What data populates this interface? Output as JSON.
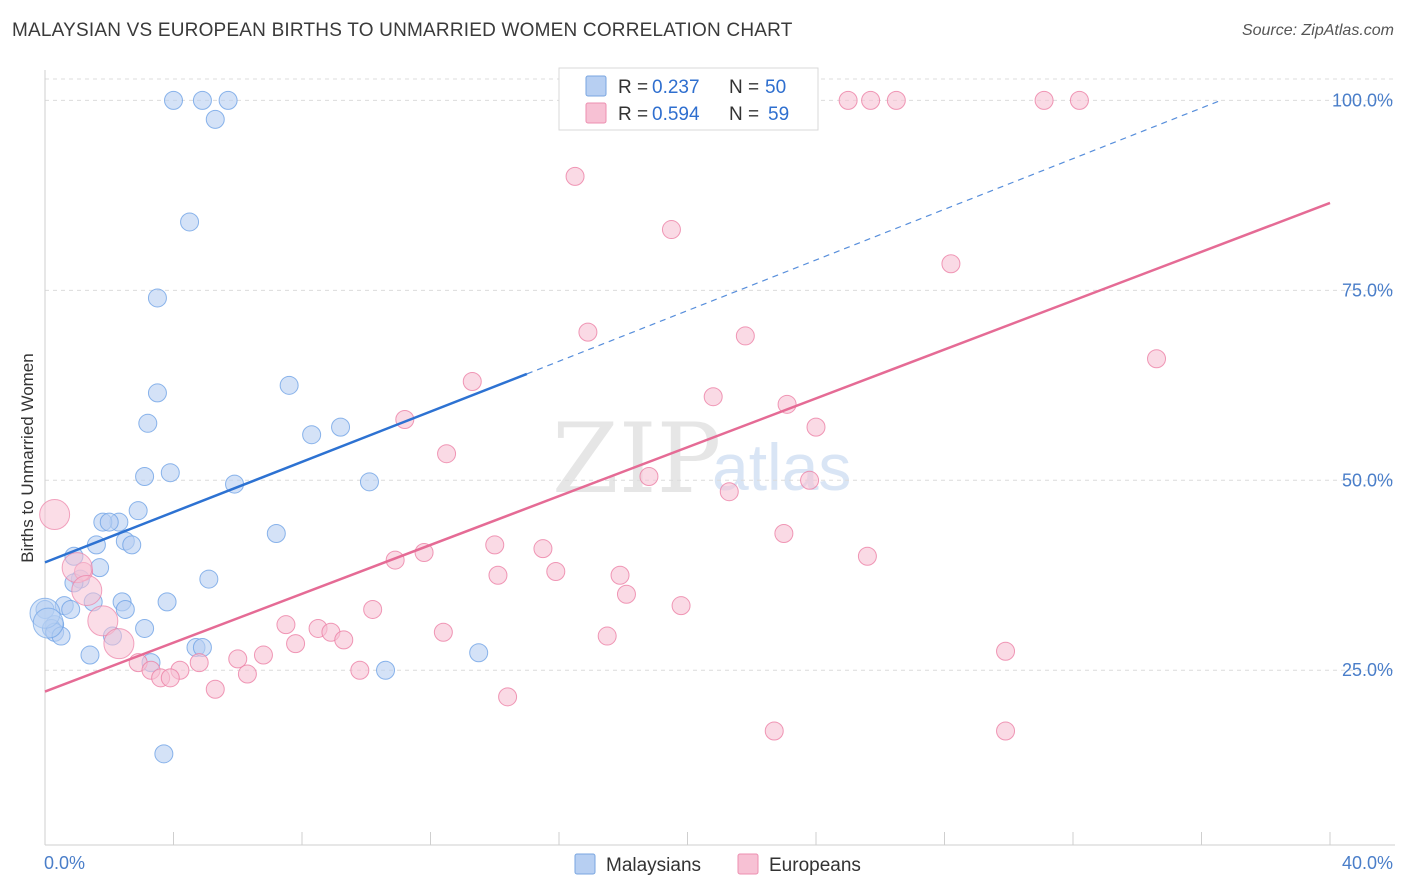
{
  "header": {
    "title": "MALAYSIAN VS EUROPEAN BIRTHS TO UNMARRIED WOMEN CORRELATION CHART",
    "source": "Source: ZipAtlas.com"
  },
  "watermark": {
    "zip": "ZIP",
    "atlas": "atlas"
  },
  "legend_box": {
    "malaysians": {
      "r_label": "R = ",
      "r_value": "0.237",
      "n_label": "N = ",
      "n_value": "50"
    },
    "europeans": {
      "r_label": "R = ",
      "r_value": "0.594",
      "n_label": "N = ",
      "n_value": "59"
    }
  },
  "bottom_legend": {
    "malaysians": "Malaysians",
    "europeans": "Europeans"
  },
  "chart_data": {
    "type": "scatter",
    "title": "MALAYSIAN VS EUROPEAN BIRTHS TO UNMARRIED WOMEN CORRELATION CHART",
    "xlabel": "",
    "ylabel": "Births to Unmarried Women",
    "xlim": [
      0,
      40
    ],
    "ylim": [
      2,
      104
    ],
    "x_tick_labels": [
      "0.0%",
      "40.0%"
    ],
    "y_ticks": [
      {
        "value": 25,
        "label": "25.0%"
      },
      {
        "value": 50,
        "label": "50.0%"
      },
      {
        "value": 75,
        "label": "75.0%"
      },
      {
        "value": 100,
        "label": "100.0%"
      }
    ],
    "grid": true,
    "series": [
      {
        "name": "Malaysians",
        "color": "#6fa3e6",
        "fill": "#b7cff2",
        "r": 0.237,
        "n": 50,
        "trend": {
          "x": [
            0,
            15.0
          ],
          "y": [
            39.2,
            64.0
          ],
          "dash_to": [
            36.6,
            100.0
          ]
        },
        "points": [
          [
            4.0,
            100
          ],
          [
            4.9,
            100
          ],
          [
            5.7,
            100
          ],
          [
            5.3,
            97.5
          ],
          [
            4.5,
            84
          ],
          [
            3.5,
            74
          ],
          [
            7.6,
            62.5
          ],
          [
            3.5,
            61.5
          ],
          [
            3.2,
            57.5
          ],
          [
            9.2,
            57
          ],
          [
            8.3,
            56
          ],
          [
            3.1,
            50.5
          ],
          [
            3.9,
            51
          ],
          [
            5.9,
            49.5
          ],
          [
            10.1,
            49.8
          ],
          [
            2.9,
            46
          ],
          [
            2.3,
            44.5
          ],
          [
            1.8,
            44.5
          ],
          [
            2.0,
            44.5
          ],
          [
            7.2,
            43
          ],
          [
            1.6,
            41.5
          ],
          [
            2.5,
            42
          ],
          [
            2.7,
            41.5
          ],
          [
            0.9,
            40
          ],
          [
            1.7,
            38.5
          ],
          [
            5.1,
            37
          ],
          [
            1.1,
            37
          ],
          [
            0.9,
            36.5
          ],
          [
            0.0,
            33
          ],
          [
            0.3,
            31
          ],
          [
            0.6,
            33.5
          ],
          [
            0.8,
            33
          ],
          [
            1.5,
            34
          ],
          [
            2.4,
            34
          ],
          [
            2.5,
            33
          ],
          [
            3.8,
            34
          ],
          [
            0.2,
            30.5
          ],
          [
            0.3,
            30
          ],
          [
            0.5,
            29.5
          ],
          [
            2.1,
            29.5
          ],
          [
            3.1,
            30.5
          ],
          [
            4.7,
            28
          ],
          [
            4.9,
            28
          ],
          [
            1.4,
            27
          ],
          [
            3.3,
            26
          ],
          [
            13.5,
            27.3
          ],
          [
            10.6,
            25
          ],
          [
            3.7,
            14
          ]
        ],
        "big_points": [
          [
            0.0,
            32.5
          ],
          [
            0.1,
            31.2
          ]
        ]
      },
      {
        "name": "Europeans",
        "color": "#ec7fa5",
        "fill": "#f7c1d4",
        "r": 0.594,
        "n": 59,
        "trend": {
          "x": [
            0,
            40
          ],
          "y": [
            22.2,
            86.5
          ]
        },
        "points": [
          [
            25.0,
            100
          ],
          [
            25.7,
            100
          ],
          [
            26.5,
            100
          ],
          [
            31.1,
            100
          ],
          [
            32.2,
            100
          ],
          [
            16.5,
            90
          ],
          [
            19.5,
            83
          ],
          [
            28.2,
            78.5
          ],
          [
            16.9,
            69.5
          ],
          [
            21.8,
            69
          ],
          [
            34.6,
            66
          ],
          [
            13.3,
            63
          ],
          [
            20.8,
            61
          ],
          [
            23.1,
            60
          ],
          [
            11.2,
            58
          ],
          [
            24.0,
            57
          ],
          [
            12.5,
            53.5
          ],
          [
            18.8,
            50.5
          ],
          [
            21.3,
            48.5
          ],
          [
            23.8,
            50
          ],
          [
            23.0,
            43
          ],
          [
            14.0,
            41.5
          ],
          [
            15.5,
            41
          ],
          [
            11.8,
            40.5
          ],
          [
            25.6,
            40
          ],
          [
            10.9,
            39.5
          ],
          [
            1.2,
            38
          ],
          [
            14.1,
            37.5
          ],
          [
            15.9,
            38
          ],
          [
            17.9,
            37.5
          ],
          [
            18.1,
            35
          ],
          [
            19.8,
            33.5
          ],
          [
            10.2,
            33
          ],
          [
            7.5,
            31
          ],
          [
            8.5,
            30.5
          ],
          [
            8.9,
            30
          ],
          [
            12.4,
            30
          ],
          [
            17.5,
            29.5
          ],
          [
            9.3,
            29
          ],
          [
            7.8,
            28.5
          ],
          [
            29.9,
            27.5
          ],
          [
            6.0,
            26.5
          ],
          [
            6.8,
            27
          ],
          [
            2.9,
            26
          ],
          [
            3.3,
            25
          ],
          [
            4.2,
            25
          ],
          [
            4.8,
            26
          ],
          [
            6.3,
            24.5
          ],
          [
            3.6,
            24
          ],
          [
            3.9,
            24
          ],
          [
            9.8,
            25
          ],
          [
            5.3,
            22.5
          ],
          [
            14.4,
            21.5
          ],
          [
            22.7,
            17
          ],
          [
            29.9,
            17
          ]
        ],
        "big_points": [
          [
            0.3,
            45.5
          ],
          [
            1.0,
            38.5
          ],
          [
            1.3,
            35.5
          ],
          [
            1.8,
            31.5
          ],
          [
            2.3,
            28.5
          ]
        ]
      }
    ]
  }
}
